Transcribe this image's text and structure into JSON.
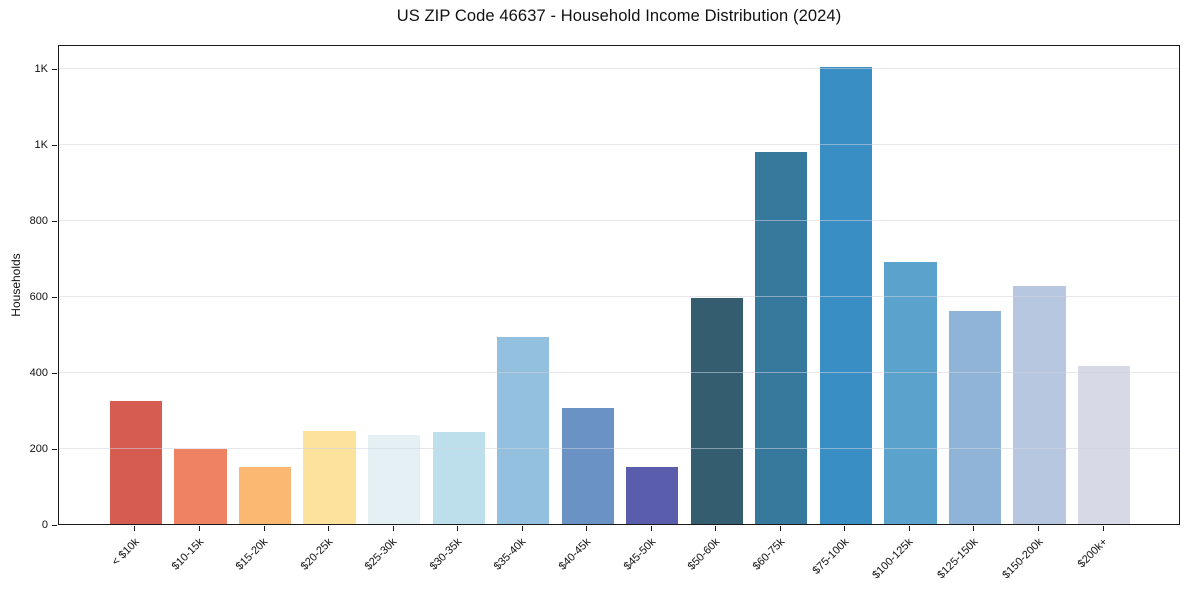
{
  "chart_data": {
    "type": "bar",
    "title": "US ZIP Code 46637 - Household Income Distribution (2024)",
    "xlabel": "",
    "ylabel": "Households",
    "categories": [
      "< $10k",
      "$10-15k",
      "$15-20k",
      "$20-25k",
      "$25-30k",
      "$30-35k",
      "$35-40k",
      "$40-45k",
      "$45-50k",
      "$50-60k",
      "$60-75k",
      "$75-100k",
      "$100-125k",
      "$125-150k",
      "$150-200k",
      "$200k+"
    ],
    "values": [
      325,
      197,
      149,
      244,
      235,
      242,
      493,
      305,
      151,
      595,
      980,
      1204,
      691,
      560,
      628,
      415
    ],
    "bar_colors": [
      "#d65c51",
      "#f08264",
      "#fab873",
      "#fde29e",
      "#e4f0f4",
      "#bcdfeb",
      "#92c0de",
      "#6b92c5",
      "#5a5dac",
      "#345d70",
      "#36799c",
      "#398fc4",
      "#5ba3cc",
      "#8fb4d7",
      "#b7c7e0",
      "#d7d9e6"
    ],
    "ylim": [
      0,
      1264
    ],
    "yticks": [
      {
        "value": 0,
        "label": "0"
      },
      {
        "value": 200,
        "label": "200"
      },
      {
        "value": 400,
        "label": "400"
      },
      {
        "value": 600,
        "label": "600"
      },
      {
        "value": 800,
        "label": "800"
      },
      {
        "value": 1000,
        "label": "1K"
      },
      {
        "value": 1200,
        "label": "1K"
      }
    ],
    "grid": "horizontal-over-bars",
    "legend": "none"
  }
}
